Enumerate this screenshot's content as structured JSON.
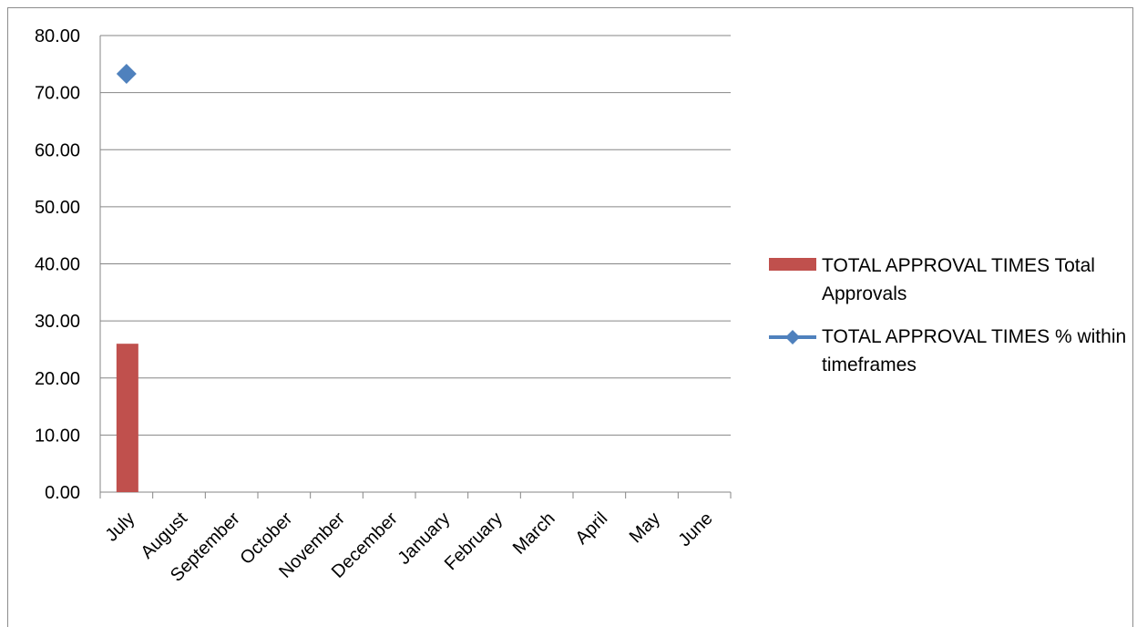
{
  "chart_data": {
    "type": "bar",
    "categories": [
      "July",
      "August",
      "September",
      "October",
      "November",
      "December",
      "January",
      "February",
      "March",
      "April",
      "May",
      "June"
    ],
    "series": [
      {
        "name": "TOTAL APPROVAL TIMES Total Approvals",
        "type": "bar",
        "color": "#c0504d",
        "values": [
          26,
          null,
          null,
          null,
          null,
          null,
          null,
          null,
          null,
          null,
          null,
          null
        ]
      },
      {
        "name": "TOTAL APPROVAL TIMES % within timeframes",
        "type": "line",
        "marker": "diamond",
        "color": "#4f81bd",
        "values": [
          73.3,
          null,
          null,
          null,
          null,
          null,
          null,
          null,
          null,
          null,
          null,
          null
        ]
      }
    ],
    "ylim": [
      0,
      80
    ],
    "ytick_labels": [
      "0.00",
      "10.00",
      "20.00",
      "30.00",
      "40.00",
      "50.00",
      "60.00",
      "70.00",
      "80.00"
    ],
    "grid": true,
    "legend_position": "right"
  }
}
